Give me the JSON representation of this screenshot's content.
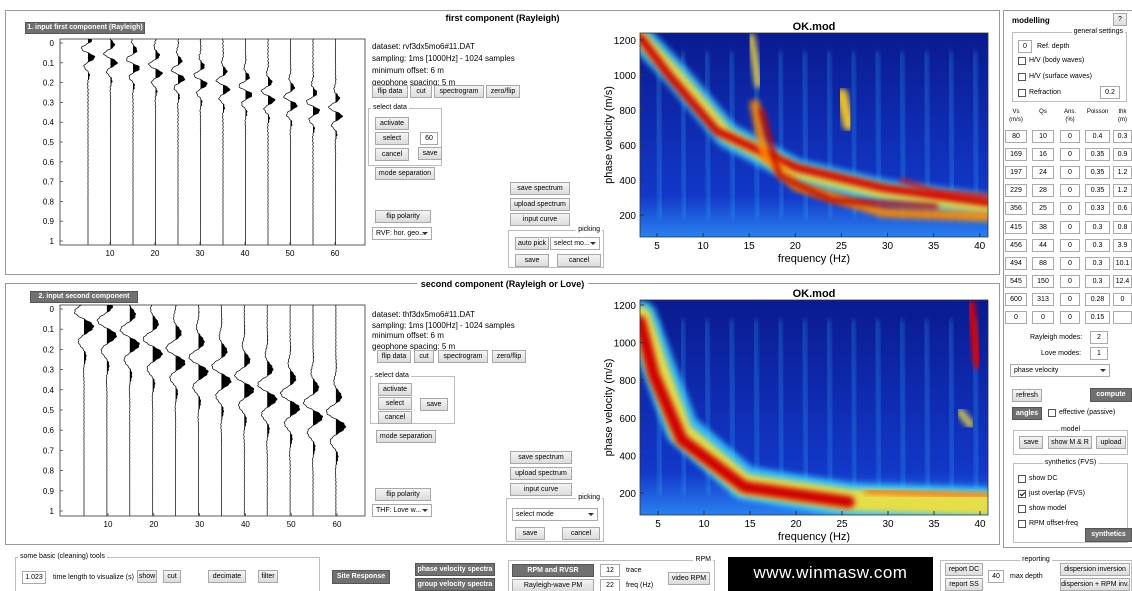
{
  "panel1": {
    "title": "first component (Rayleigh)",
    "input_button": "1. input first component (Rayleigh)",
    "info": [
      "dataset: rvf3dx5mo6#11.DAT",
      "sampling: 1ms [1000Hz] - 1024 samples",
      "minimum offset: 6 m",
      "geophone spacing: 5 m"
    ],
    "data_buttons": [
      "flip data",
      "cut",
      "spectrogram",
      "zero/flip"
    ],
    "select_data": {
      "title": "select data",
      "buttons": [
        "activate",
        "select",
        "cancel",
        "save"
      ],
      "value": 60
    },
    "mode_separation": "mode separation",
    "flip_polarity": "flip polarity",
    "dropdown": "RVF: hor. geo...",
    "spectrum_buttons": [
      "save spectrum",
      "upload spectrum",
      "input curve"
    ],
    "picking": {
      "title": "picking",
      "auto_pick": "auto pick",
      "dropdown": "select mo...",
      "buttons": [
        "save",
        "cancel"
      ]
    },
    "seismogram": {
      "yticks": [
        0,
        0.1,
        0.2,
        0.3,
        0.4,
        0.5,
        0.6,
        0.7,
        0.8,
        0.9,
        1
      ],
      "xticks": [
        10,
        20,
        30,
        40,
        50,
        60
      ]
    },
    "spectrum": {
      "title": "OK.mod",
      "xlabel": "frequency (Hz)",
      "ylabel": "phase velocity (m/s)",
      "xticks": [
        5,
        10,
        15,
        20,
        25,
        30,
        35,
        40
      ],
      "yticks": [
        200,
        400,
        600,
        800,
        1000,
        1200
      ]
    }
  },
  "panel2": {
    "title": "second component (Rayleigh or Love)",
    "input_button": "2. input second component",
    "info": [
      "dataset: thf3dx5mo6#11.DAT",
      "sampling: 1ms [1000Hz] - 1024 samples",
      "minimum offset: 6 m",
      "geophone spacing: 5 m"
    ],
    "data_buttons": [
      "flip data",
      "cut",
      "spectrogram",
      "zero/flip"
    ],
    "select_data": {
      "title": "select data",
      "buttons": [
        "activate",
        "select",
        "save",
        "cancel"
      ]
    },
    "mode_separation": "mode separation",
    "flip_polarity": "flip polarity",
    "dropdown": "THF: Love w...",
    "spectrum_buttons": [
      "save spectrum",
      "upload spectrum",
      "input curve"
    ],
    "picking": {
      "title": "picking",
      "dropdown": "select mode",
      "buttons": [
        "save",
        "cancel"
      ]
    },
    "seismogram": {
      "yticks": [
        0,
        0.1,
        0.2,
        0.3,
        0.4,
        0.5,
        0.6,
        0.7,
        0.8,
        0.9,
        1
      ],
      "xticks": [
        10,
        20,
        30,
        40,
        50,
        60
      ]
    },
    "spectrum": {
      "title": "OK.mod",
      "xlabel": "frequency (Hz)",
      "ylabel": "phase velocity (m/s)",
      "xticks": [
        5,
        10,
        15,
        20,
        25,
        30,
        35,
        40
      ],
      "yticks": [
        200,
        400,
        600,
        800,
        1000,
        1200
      ]
    }
  },
  "modelling": {
    "title": "modelling",
    "help": "?",
    "general_settings": {
      "title": "general settings",
      "ref_depth_value": 0,
      "ref_depth_label": "Ref. depth",
      "options": [
        {
          "label": "H/V (body waves)",
          "checked": false
        },
        {
          "label": "H/V (surface waves)",
          "checked": false
        },
        {
          "label": "Refraction",
          "checked": false
        }
      ],
      "refraction_value": 0.2
    },
    "layers": {
      "headers": [
        [
          "Vs",
          "(m/s)"
        ],
        [
          "Qs"
        ],
        [
          "Ans.",
          "(%)"
        ],
        [
          "Poisson"
        ],
        [
          "thk",
          "(m)"
        ]
      ],
      "rows": [
        [
          80,
          10,
          0,
          0.4,
          0.3
        ],
        [
          169,
          16,
          0,
          0.35,
          0.9
        ],
        [
          197,
          24,
          0,
          0.35,
          1.2
        ],
        [
          229,
          28,
          0,
          0.35,
          1.2
        ],
        [
          356,
          25,
          0,
          0.33,
          0.6
        ],
        [
          415,
          38,
          0,
          0.3,
          0.8
        ],
        [
          456,
          44,
          0,
          0.3,
          3.9
        ],
        [
          494,
          88,
          0,
          0.3,
          10.1
        ],
        [
          545,
          150,
          0,
          0.3,
          12.4
        ],
        [
          600,
          313,
          0,
          0.28,
          0
        ],
        [
          0,
          0,
          0,
          0.15
        ]
      ]
    },
    "rayleigh_modes_label": "Rayleigh modes:",
    "rayleigh_modes": 2,
    "love_modes_label": "Love modes:",
    "love_modes": 1,
    "dispersion_dropdown": "phase velocity",
    "refresh": "refresh",
    "compute": "compute",
    "angles": "angles",
    "effective": {
      "label": "effective (passive)",
      "checked": false
    },
    "model": {
      "title": "model",
      "buttons": [
        "save",
        "show M & R",
        "upload"
      ]
    },
    "synthetics": {
      "title": "synthetics (FVS)",
      "options": [
        {
          "label": "show DC",
          "checked": false
        },
        {
          "label": "just overlap (FVS)",
          "checked": true
        },
        {
          "label": "show model",
          "checked": false
        },
        {
          "label": "RPM offset-freq",
          "checked": false
        }
      ],
      "button": "synthetics"
    }
  },
  "tools": {
    "title": "some basic (cleaning) tools",
    "time_length_value": 1.023,
    "time_length_label": "time length to visualize (s)",
    "buttons": [
      "show",
      "cut",
      "decimate",
      "filter"
    ]
  },
  "site_response": "Site Response",
  "spectra_buttons": [
    "phase velocity spectra",
    "group velocity spectra"
  ],
  "rpm": {
    "title": "RPM",
    "buttons": [
      "RPM and RVSR",
      "Rayleigh-wave PM"
    ],
    "trace_value": 12,
    "trace_label": "trace",
    "freq_value": 22,
    "freq_label": "freq (Hz)",
    "video": "video RPM"
  },
  "logo": "www.winmasw.com",
  "reporting": {
    "title": "reporting",
    "buttons": [
      "report DC",
      "report SS"
    ],
    "max_depth_value": 40,
    "max_depth_label": "max depth",
    "inversion_buttons": [
      "dispersion inversion",
      "dispersion + RPM inv."
    ]
  }
}
